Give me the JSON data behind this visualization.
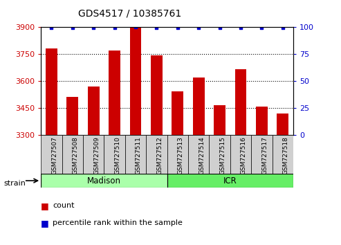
{
  "title": "GDS4517 / 10385761",
  "samples": [
    "GSM727507",
    "GSM727508",
    "GSM727509",
    "GSM727510",
    "GSM727511",
    "GSM727512",
    "GSM727513",
    "GSM727514",
    "GSM727515",
    "GSM727516",
    "GSM727517",
    "GSM727518"
  ],
  "counts": [
    3780,
    3510,
    3570,
    3770,
    3895,
    3740,
    3540,
    3620,
    3465,
    3665,
    3455,
    3420
  ],
  "percentiles": [
    99,
    99,
    99,
    99,
    100,
    99,
    99,
    99,
    99,
    99,
    99,
    99
  ],
  "bar_color": "#cc0000",
  "dot_color": "#0000cc",
  "ylim_left": [
    3300,
    3900
  ],
  "ylim_right": [
    0,
    100
  ],
  "yticks_left": [
    3300,
    3450,
    3600,
    3750,
    3900
  ],
  "yticks_right": [
    0,
    25,
    50,
    75,
    100
  ],
  "madison_color": "#aaffaa",
  "icr_color": "#66ee66",
  "xtick_bg": "#d0d0d0",
  "left_tick_color": "#cc0000",
  "right_tick_color": "#0000cc",
  "plot_bg_color": "#ffffff",
  "bar_width": 0.55
}
